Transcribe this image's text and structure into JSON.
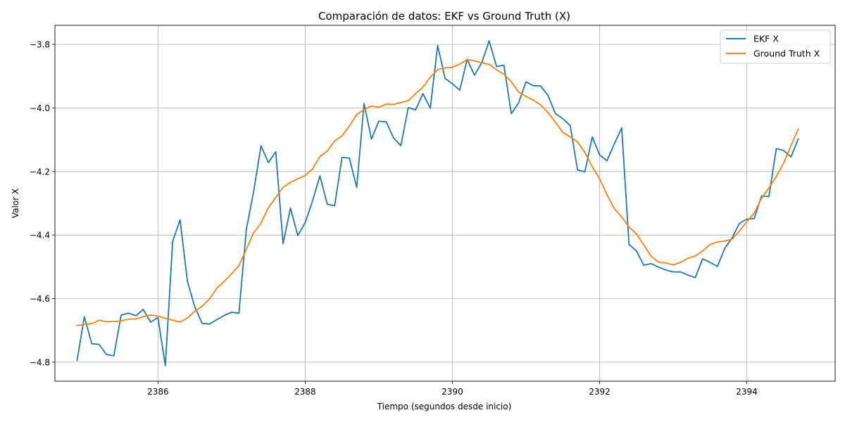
{
  "chart_data": {
    "type": "line",
    "title": "Comparación de datos: EKF vs Ground Truth (X)",
    "xlabel": "Tiempo (segundos desde inicio)",
    "ylabel": "Valor X",
    "xlim": [
      2384.6,
      2395.2
    ],
    "ylim": [
      -4.86,
      -3.74
    ],
    "xticks": [
      2386,
      2388,
      2390,
      2392,
      2394
    ],
    "yticks": [
      -4.8,
      -4.6,
      -4.4,
      -4.2,
      -4.0,
      -3.8
    ],
    "ytick_labels": [
      "−4.8",
      "−4.6",
      "−4.4",
      "−4.2",
      "−4.0",
      "−3.8"
    ],
    "grid": true,
    "legend_position": "top-right",
    "series": [
      {
        "name": "EKF X",
        "color": "#1f77b4",
        "points": [
          [
            2384.9,
            -4.795
          ],
          [
            2385.0,
            -4.657
          ],
          [
            2385.1,
            -4.742
          ],
          [
            2385.2,
            -4.744
          ],
          [
            2385.3,
            -4.776
          ],
          [
            2385.4,
            -4.78
          ],
          [
            2385.5,
            -4.652
          ],
          [
            2385.6,
            -4.646
          ],
          [
            2385.7,
            -4.654
          ],
          [
            2385.8,
            -4.634
          ],
          [
            2385.9,
            -4.674
          ],
          [
            2386.0,
            -4.66
          ],
          [
            2386.1,
            -4.811
          ],
          [
            2386.2,
            -4.42
          ],
          [
            2386.3,
            -4.352
          ],
          [
            2386.4,
            -4.546
          ],
          [
            2386.5,
            -4.626
          ],
          [
            2386.6,
            -4.678
          ],
          [
            2386.7,
            -4.68
          ],
          [
            2386.8,
            -4.666
          ],
          [
            2386.9,
            -4.653
          ],
          [
            2387.0,
            -4.643
          ],
          [
            2387.1,
            -4.646
          ],
          [
            2387.2,
            -4.383
          ],
          [
            2387.3,
            -4.263
          ],
          [
            2387.4,
            -4.119
          ],
          [
            2387.5,
            -4.172
          ],
          [
            2387.6,
            -4.138
          ],
          [
            2387.7,
            -4.427
          ],
          [
            2387.8,
            -4.315
          ],
          [
            2387.9,
            -4.402
          ],
          [
            2388.0,
            -4.361
          ],
          [
            2388.1,
            -4.293
          ],
          [
            2388.2,
            -4.214
          ],
          [
            2388.3,
            -4.303
          ],
          [
            2388.4,
            -4.308
          ],
          [
            2388.5,
            -4.156
          ],
          [
            2388.6,
            -4.158
          ],
          [
            2388.7,
            -4.25
          ],
          [
            2388.8,
            -3.986
          ],
          [
            2388.9,
            -4.098
          ],
          [
            2389.0,
            -4.042
          ],
          [
            2389.1,
            -4.044
          ],
          [
            2389.2,
            -4.094
          ],
          [
            2389.3,
            -4.119
          ],
          [
            2389.4,
            -3.999
          ],
          [
            2389.5,
            -4.006
          ],
          [
            2389.6,
            -3.955
          ],
          [
            2389.7,
            -4.001
          ],
          [
            2389.8,
            -3.803
          ],
          [
            2389.9,
            -3.907
          ],
          [
            2390.0,
            -3.924
          ],
          [
            2390.1,
            -3.944
          ],
          [
            2390.2,
            -3.847
          ],
          [
            2390.3,
            -3.897
          ],
          [
            2390.4,
            -3.857
          ],
          [
            2390.5,
            -3.789
          ],
          [
            2390.6,
            -3.87
          ],
          [
            2390.7,
            -3.865
          ],
          [
            2390.8,
            -4.018
          ],
          [
            2390.9,
            -3.984
          ],
          [
            2391.0,
            -3.918
          ],
          [
            2391.1,
            -3.93
          ],
          [
            2391.2,
            -3.931
          ],
          [
            2391.3,
            -3.961
          ],
          [
            2391.4,
            -4.018
          ],
          [
            2391.5,
            -4.034
          ],
          [
            2391.6,
            -4.055
          ],
          [
            2391.7,
            -4.195
          ],
          [
            2391.8,
            -4.201
          ],
          [
            2391.9,
            -4.091
          ],
          [
            2392.0,
            -4.148
          ],
          [
            2392.1,
            -4.166
          ],
          [
            2392.2,
            -4.113
          ],
          [
            2392.3,
            -4.063
          ],
          [
            2392.4,
            -4.43
          ],
          [
            2392.5,
            -4.45
          ],
          [
            2392.6,
            -4.495
          ],
          [
            2392.7,
            -4.49
          ],
          [
            2392.8,
            -4.501
          ],
          [
            2392.9,
            -4.51
          ],
          [
            2393.0,
            -4.516
          ],
          [
            2393.1,
            -4.516
          ],
          [
            2393.2,
            -4.526
          ],
          [
            2393.3,
            -4.534
          ],
          [
            2393.4,
            -4.475
          ],
          [
            2393.5,
            -4.486
          ],
          [
            2393.6,
            -4.499
          ],
          [
            2393.7,
            -4.442
          ],
          [
            2393.8,
            -4.409
          ],
          [
            2393.9,
            -4.363
          ],
          [
            2394.0,
            -4.35
          ],
          [
            2394.1,
            -4.348
          ],
          [
            2394.2,
            -4.277
          ],
          [
            2394.3,
            -4.279
          ],
          [
            2394.4,
            -4.128
          ],
          [
            2394.5,
            -4.134
          ],
          [
            2394.6,
            -4.154
          ],
          [
            2394.7,
            -4.097
          ]
        ]
      },
      {
        "name": "Ground Truth X",
        "color": "#ff7f0e",
        "points": [
          [
            2384.9,
            -4.685
          ],
          [
            2385.0,
            -4.681
          ],
          [
            2385.1,
            -4.679
          ],
          [
            2385.2,
            -4.668
          ],
          [
            2385.3,
            -4.673
          ],
          [
            2385.4,
            -4.672
          ],
          [
            2385.5,
            -4.67
          ],
          [
            2385.6,
            -4.665
          ],
          [
            2385.7,
            -4.664
          ],
          [
            2385.8,
            -4.657
          ],
          [
            2385.9,
            -4.652
          ],
          [
            2386.0,
            -4.655
          ],
          [
            2386.1,
            -4.662
          ],
          [
            2386.2,
            -4.668
          ],
          [
            2386.3,
            -4.674
          ],
          [
            2386.4,
            -4.661
          ],
          [
            2386.5,
            -4.64
          ],
          [
            2386.6,
            -4.624
          ],
          [
            2386.7,
            -4.601
          ],
          [
            2386.8,
            -4.567
          ],
          [
            2386.9,
            -4.546
          ],
          [
            2387.0,
            -4.522
          ],
          [
            2387.1,
            -4.496
          ],
          [
            2387.2,
            -4.445
          ],
          [
            2387.3,
            -4.393
          ],
          [
            2387.4,
            -4.362
          ],
          [
            2387.5,
            -4.314
          ],
          [
            2387.6,
            -4.282
          ],
          [
            2387.7,
            -4.25
          ],
          [
            2387.8,
            -4.234
          ],
          [
            2387.9,
            -4.223
          ],
          [
            2388.0,
            -4.213
          ],
          [
            2388.1,
            -4.192
          ],
          [
            2388.2,
            -4.153
          ],
          [
            2388.3,
            -4.136
          ],
          [
            2388.4,
            -4.104
          ],
          [
            2388.5,
            -4.088
          ],
          [
            2388.6,
            -4.057
          ],
          [
            2388.7,
            -4.021
          ],
          [
            2388.8,
            -4.005
          ],
          [
            2388.9,
            -3.994
          ],
          [
            2389.0,
            -3.998
          ],
          [
            2389.1,
            -3.988
          ],
          [
            2389.2,
            -3.989
          ],
          [
            2389.3,
            -3.983
          ],
          [
            2389.4,
            -3.977
          ],
          [
            2389.5,
            -3.955
          ],
          [
            2389.6,
            -3.935
          ],
          [
            2389.7,
            -3.903
          ],
          [
            2389.8,
            -3.88
          ],
          [
            2389.9,
            -3.874
          ],
          [
            2390.0,
            -3.872
          ],
          [
            2390.1,
            -3.862
          ],
          [
            2390.2,
            -3.848
          ],
          [
            2390.3,
            -3.852
          ],
          [
            2390.4,
            -3.858
          ],
          [
            2390.5,
            -3.863
          ],
          [
            2390.6,
            -3.88
          ],
          [
            2390.7,
            -3.894
          ],
          [
            2390.8,
            -3.918
          ],
          [
            2390.9,
            -3.95
          ],
          [
            2391.0,
            -3.964
          ],
          [
            2391.1,
            -3.975
          ],
          [
            2391.2,
            -3.991
          ],
          [
            2391.3,
            -4.015
          ],
          [
            2391.4,
            -4.045
          ],
          [
            2391.5,
            -4.077
          ],
          [
            2391.6,
            -4.091
          ],
          [
            2391.7,
            -4.107
          ],
          [
            2391.8,
            -4.14
          ],
          [
            2391.9,
            -4.185
          ],
          [
            2392.0,
            -4.223
          ],
          [
            2392.1,
            -4.273
          ],
          [
            2392.2,
            -4.317
          ],
          [
            2392.3,
            -4.343
          ],
          [
            2392.4,
            -4.375
          ],
          [
            2392.5,
            -4.396
          ],
          [
            2392.6,
            -4.431
          ],
          [
            2392.7,
            -4.467
          ],
          [
            2392.8,
            -4.485
          ],
          [
            2392.9,
            -4.488
          ],
          [
            2393.0,
            -4.494
          ],
          [
            2393.1,
            -4.486
          ],
          [
            2393.2,
            -4.473
          ],
          [
            2393.3,
            -4.466
          ],
          [
            2393.4,
            -4.45
          ],
          [
            2393.5,
            -4.43
          ],
          [
            2393.6,
            -4.422
          ],
          [
            2393.7,
            -4.419
          ],
          [
            2393.8,
            -4.413
          ],
          [
            2393.9,
            -4.387
          ],
          [
            2394.0,
            -4.358
          ],
          [
            2394.1,
            -4.331
          ],
          [
            2394.2,
            -4.284
          ],
          [
            2394.3,
            -4.252
          ],
          [
            2394.4,
            -4.216
          ],
          [
            2394.5,
            -4.174
          ],
          [
            2394.6,
            -4.119
          ],
          [
            2394.7,
            -4.066
          ]
        ]
      }
    ]
  }
}
